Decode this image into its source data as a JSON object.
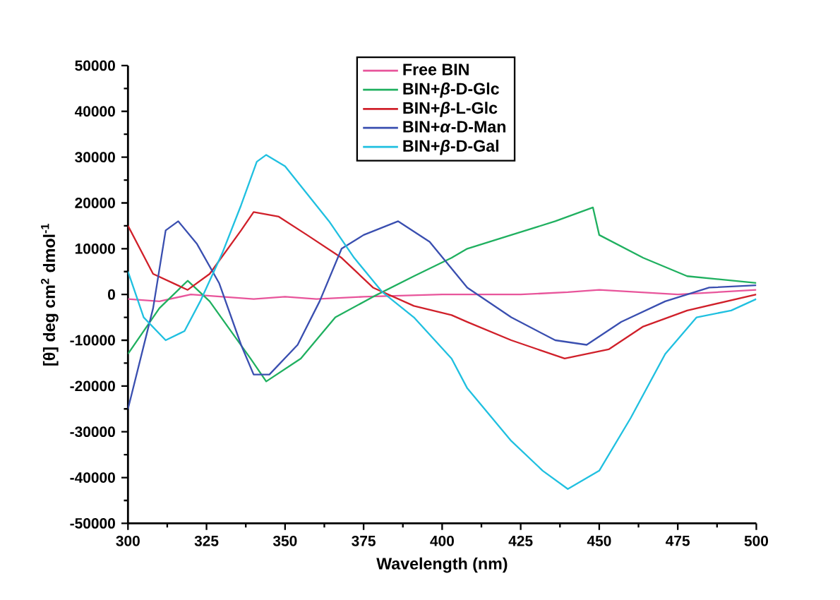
{
  "chart_data": {
    "type": "line",
    "xlabel": "Wavelength (nm)",
    "ylabel": "[θ] deg cm$^{2}$ dmol$^{-1}$",
    "xlim": [
      300,
      500
    ],
    "ylim": [
      -50000,
      50000
    ],
    "xticks": [
      300,
      325,
      350,
      375,
      400,
      425,
      450,
      475,
      500
    ],
    "yticks": [
      -50000,
      -40000,
      -30000,
      -20000,
      -10000,
      0,
      10000,
      20000,
      30000,
      40000,
      50000
    ],
    "legend": "top",
    "grid": false,
    "marker": "none",
    "line_style": "solid",
    "series": [
      {
        "name": "Free BIN",
        "color": "#e8559b",
        "x": [
          300,
          310,
          320,
          330,
          340,
          350,
          360,
          375,
          400,
          425,
          440,
          450,
          475,
          500
        ],
        "values": [
          -1000,
          -1500,
          0,
          -500,
          -1000,
          -500,
          -1000,
          -500,
          0,
          0,
          500,
          1000,
          0,
          1000
        ]
      },
      {
        "name": "BIN+*β*-D-Glc",
        "color": "#20b060",
        "x": [
          300,
          310,
          319,
          326,
          339,
          344,
          355,
          366,
          378,
          391,
          403,
          408,
          422,
          436,
          448,
          450,
          464,
          478,
          500
        ],
        "values": [
          -13000,
          -3000,
          3000,
          -1500,
          -14000,
          -19000,
          -14000,
          -5000,
          -500,
          4000,
          8000,
          10000,
          13000,
          16000,
          19000,
          13000,
          8000,
          4000,
          2500
        ]
      },
      {
        "name": "BIN+*β*-L-Glc",
        "color": "#d0202a",
        "x": [
          300,
          308,
          319,
          326,
          336,
          340,
          348,
          357,
          368,
          378,
          391,
          403,
          408,
          422,
          439,
          453,
          464,
          478,
          500
        ],
        "values": [
          15000,
          4500,
          1000,
          4500,
          14000,
          18000,
          17000,
          13000,
          8000,
          1500,
          -2500,
          -4500,
          -6000,
          -10000,
          -14000,
          -12000,
          -7000,
          -3500,
          0
        ]
      },
      {
        "name": "BIN+*α*-D-Man",
        "color": "#3a4fb0",
        "x": [
          300,
          308,
          312,
          316,
          322,
          329,
          336,
          340,
          345,
          354,
          361,
          368,
          375,
          386,
          396,
          408,
          422,
          436,
          446,
          457,
          471,
          485,
          500
        ],
        "values": [
          -25000,
          -3000,
          14000,
          16000,
          11000,
          2500,
          -11000,
          -17500,
          -17500,
          -11000,
          -1500,
          10000,
          13000,
          16000,
          11500,
          1500,
          -5000,
          -10000,
          -11000,
          -6000,
          -1500,
          1500,
          2000
        ]
      },
      {
        "name": "BIN+*β*-D-Gal",
        "color": "#20c0e0",
        "x": [
          300,
          305,
          312,
          318,
          323,
          330,
          336,
          341,
          344,
          350,
          357,
          364,
          372,
          381,
          391,
          403,
          408,
          422,
          432,
          440,
          450,
          460,
          471,
          481,
          492,
          500
        ],
        "values": [
          5000,
          -5000,
          -10000,
          -8000,
          -1500,
          9000,
          19500,
          29000,
          30500,
          28000,
          22000,
          16000,
          8000,
          500,
          -5000,
          -14000,
          -20500,
          -32000,
          -38500,
          -42500,
          -38500,
          -27000,
          -13000,
          -5000,
          -3500,
          -1000
        ]
      }
    ]
  }
}
